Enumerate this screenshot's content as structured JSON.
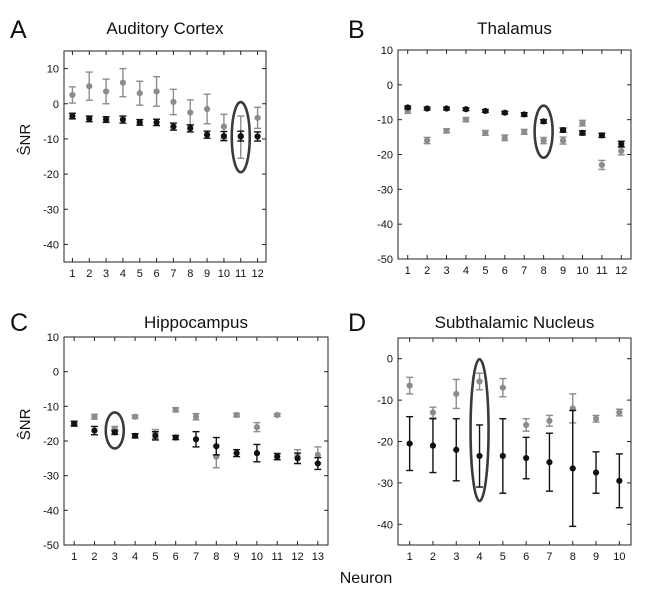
{
  "figure": {
    "xlabel": "Neuron"
  },
  "colors": {
    "dark": "#111111",
    "light": "#8c8c8c",
    "ellipse": "#3a3a3a",
    "frame": "#222222"
  },
  "chart_data": [
    {
      "letter": "A",
      "title": "Auditory Cortex",
      "ylabel": "ŜNR",
      "type": "scatter",
      "x": [
        1,
        2,
        3,
        4,
        5,
        6,
        7,
        8,
        9,
        10,
        11,
        12
      ],
      "ylim": [
        -45,
        15
      ],
      "yticks": [
        10,
        0,
        -10,
        -20,
        -30,
        -40
      ],
      "highlight_neuron": 11,
      "series": [
        {
          "color": "dark",
          "values": [
            -3.5,
            -4.3,
            -4.5,
            -4.5,
            -5.3,
            -5.3,
            -6.5,
            -7,
            -8.8,
            -9.2,
            -9.2,
            -9.3
          ],
          "err": [
            0.8,
            0.8,
            0.8,
            1.0,
            0.8,
            0.9,
            1.0,
            1.0,
            1.0,
            1.3,
            1.4,
            1.3
          ]
        },
        {
          "color": "light",
          "values": [
            2.5,
            5,
            3.5,
            6,
            3,
            3.5,
            0.5,
            -2.5,
            -1.5,
            -6.5,
            -9.5,
            -4
          ],
          "err": [
            2.3,
            4.0,
            3.5,
            4.0,
            3.4,
            4.2,
            3.6,
            3.6,
            4.2,
            3.5,
            6.0,
            3.0
          ]
        }
      ]
    },
    {
      "letter": "B",
      "title": "Thalamus",
      "ylabel": "",
      "type": "scatter",
      "x": [
        1,
        2,
        3,
        4,
        5,
        6,
        7,
        8,
        9,
        10,
        11,
        12
      ],
      "ylim": [
        -50,
        10
      ],
      "yticks": [
        10,
        0,
        -10,
        -20,
        -30,
        -40,
        -50
      ],
      "highlight_neuron": 8,
      "series": [
        {
          "color": "dark",
          "values": [
            -6.5,
            -6.8,
            -6.8,
            -7,
            -7.5,
            -8,
            -8.5,
            -10.5,
            -13,
            -13.8,
            -14.5,
            -17
          ],
          "err": [
            0.4,
            0.4,
            0.4,
            0.4,
            0.4,
            0.4,
            0.5,
            0.5,
            0.6,
            0.6,
            0.6,
            0.8
          ]
        },
        {
          "color": "light",
          "values": [
            -7.5,
            -16,
            -13.2,
            -10,
            -13.8,
            -15.2,
            -13.5,
            -16,
            -16,
            -11,
            -23,
            -19
          ],
          "err": [
            0.7,
            0.9,
            0.6,
            0.6,
            0.7,
            0.8,
            0.7,
            0.9,
            1.0,
            0.8,
            1.3,
            1.1
          ]
        }
      ]
    },
    {
      "letter": "C",
      "title": "Hippocampus",
      "ylabel": "ŜNR",
      "type": "scatter",
      "x": [
        1,
        2,
        3,
        4,
        5,
        6,
        7,
        8,
        9,
        10,
        11,
        12,
        13
      ],
      "ylim": [
        -50,
        10
      ],
      "yticks": [
        10,
        0,
        -10,
        -20,
        -30,
        -40,
        -50
      ],
      "highlight_neuron": 3,
      "series": [
        {
          "color": "dark",
          "values": [
            -15,
            -17,
            -17.5,
            -18.5,
            -18.5,
            -19,
            -19.5,
            -21.5,
            -23.5,
            -23.5,
            -24.5,
            -25,
            -26.5
          ],
          "err": [
            0.7,
            1.2,
            0.6,
            0.6,
            1.2,
            0.6,
            2.2,
            2.5,
            1.0,
            2.5,
            0.9,
            1.5,
            1.7
          ]
        },
        {
          "color": "light",
          "values": [
            -15,
            -13,
            -16.5,
            -13,
            -18,
            -11,
            -13,
            -24.5,
            -12.5,
            -16,
            -12.5,
            -24.5,
            -24
          ],
          "err": [
            0.6,
            0.7,
            0.7,
            0.5,
            1.3,
            0.6,
            0.9,
            3.2,
            0.5,
            1.3,
            0.4,
            2.0,
            2.3
          ]
        }
      ]
    },
    {
      "letter": "D",
      "title": "Subthalamic Nucleus",
      "ylabel": "",
      "type": "scatter",
      "x": [
        1,
        2,
        3,
        4,
        5,
        6,
        7,
        8,
        9,
        10
      ],
      "ylim": [
        -45,
        5
      ],
      "yticks": [
        0,
        -10,
        -20,
        -30,
        -40
      ],
      "highlight_neuron": 4,
      "series": [
        {
          "color": "dark",
          "values": [
            -20.5,
            -21,
            -22,
            -23.5,
            -23.5,
            -24,
            -25,
            -26.5,
            -27.5,
            -29.5
          ],
          "err": [
            6.5,
            6.5,
            7.5,
            7.5,
            9.0,
            5.0,
            7.0,
            14.0,
            5.0,
            6.5
          ]
        },
        {
          "color": "light",
          "values": [
            -6.5,
            -13,
            -8.5,
            -5.5,
            -7,
            -16,
            -15,
            -12,
            -14.5,
            -13
          ],
          "err": [
            2.0,
            1.3,
            3.5,
            2.0,
            2.2,
            1.5,
            1.3,
            3.5,
            0.8,
            0.8
          ]
        }
      ]
    }
  ]
}
